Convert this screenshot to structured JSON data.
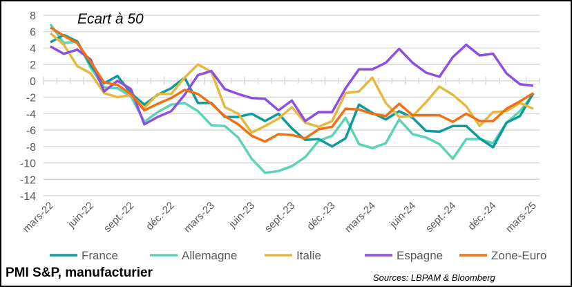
{
  "chart_data": {
    "type": "line",
    "title": "Ecart à 50",
    "footer_title": "PMI S&P, manufacturier",
    "source": "Sources: LBPAM & Bloomberg",
    "xlabel": "",
    "ylabel": "",
    "ylim": [
      -14,
      8
    ],
    "yticks": [
      8,
      6,
      4,
      2,
      0,
      -2,
      -4,
      -6,
      -8,
      -10,
      -12,
      -14
    ],
    "grid": true,
    "legend_position": "bottom",
    "x_tick_labels": [
      "mars-22",
      "juin-22",
      "sept.-22",
      "déc.-22",
      "mars-23",
      "juin-23",
      "sept.-23",
      "déc.-23",
      "mars-24",
      "juin-24",
      "sept.-24",
      "déc.-24",
      "mars-25"
    ],
    "x_period": "monthly, mars-22 to mars-25",
    "series": [
      {
        "name": "France",
        "color": "#0E9A9A",
        "values": [
          4.7,
          5.6,
          4.8,
          1.9,
          -0.3,
          0.6,
          -1.5,
          -2.9,
          -1.7,
          -0.9,
          0.4,
          -2.7,
          -2.7,
          -4.4,
          -4.4,
          -4.0,
          -4.9,
          -4.0,
          -5.8,
          -7.2,
          -7.1,
          -8.0,
          -7.0,
          -2.9,
          -3.9,
          -4.7,
          -3.7,
          -4.5,
          -6.1,
          -6.2,
          -5.5,
          -5.5,
          -7.0,
          -8.1,
          -5.1,
          -4.3,
          -1.5
        ]
      },
      {
        "name": "Allemagne",
        "color": "#5CD3B8",
        "values": [
          6.9,
          4.6,
          4.8,
          1.6,
          -0.8,
          -0.9,
          -1.9,
          -5.0,
          -3.8,
          -2.9,
          -2.7,
          -3.7,
          -5.4,
          -5.5,
          -6.9,
          -9.5,
          -11.2,
          -11.0,
          -10.4,
          -9.3,
          -7.3,
          -6.7,
          -4.5,
          -7.7,
          -8.2,
          -7.6,
          -4.7,
          -6.5,
          -6.9,
          -7.7,
          -9.5,
          -7.1,
          -7.1,
          -7.6,
          -5.1,
          -3.7,
          -1.6
        ]
      },
      {
        "name": "Italie",
        "color": "#E5B93D",
        "values": [
          5.8,
          4.4,
          1.8,
          0.9,
          -1.5,
          -2.0,
          -1.7,
          -3.3,
          -1.6,
          -1.6,
          0.4,
          2.0,
          1.1,
          -3.2,
          -4.0,
          -6.3,
          -5.5,
          -4.6,
          -3.2,
          -5.1,
          -5.6,
          -4.9,
          -1.5,
          -1.3,
          0.4,
          -2.7,
          -4.4,
          -4.3,
          -2.6,
          -0.7,
          -1.7,
          -3.1,
          -5.5,
          -3.8,
          -3.7,
          -2.7,
          -3.4
        ]
      },
      {
        "name": "Espagne",
        "color": "#8E4FE0",
        "values": [
          4.2,
          3.3,
          3.8,
          2.6,
          -1.3,
          0.0,
          -1.0,
          -5.3,
          -4.4,
          -3.7,
          -1.7,
          0.7,
          1.2,
          -1.0,
          -1.6,
          -2.1,
          -2.2,
          -3.6,
          -2.4,
          -4.9,
          -3.8,
          -3.8,
          -0.9,
          1.4,
          1.4,
          2.2,
          3.9,
          2.2,
          1.0,
          0.5,
          2.9,
          4.4,
          3.1,
          3.3,
          0.9,
          -0.4,
          -0.6
        ]
      },
      {
        "name": "Zone-Euro",
        "color": "#F07012",
        "values": [
          6.5,
          5.5,
          4.6,
          2.3,
          -0.2,
          -0.5,
          -1.6,
          -3.6,
          -2.8,
          -2.1,
          -1.1,
          -1.6,
          -2.8,
          -4.3,
          -5.3,
          -6.7,
          -7.4,
          -6.5,
          -6.6,
          -7.0,
          -5.9,
          -5.6,
          -3.4,
          -3.5,
          -4.0,
          -4.3,
          -2.8,
          -4.2,
          -4.2,
          -4.2,
          -5.0,
          -4.0,
          -4.9,
          -4.9,
          -3.4,
          -2.5,
          -1.5
        ]
      }
    ]
  }
}
